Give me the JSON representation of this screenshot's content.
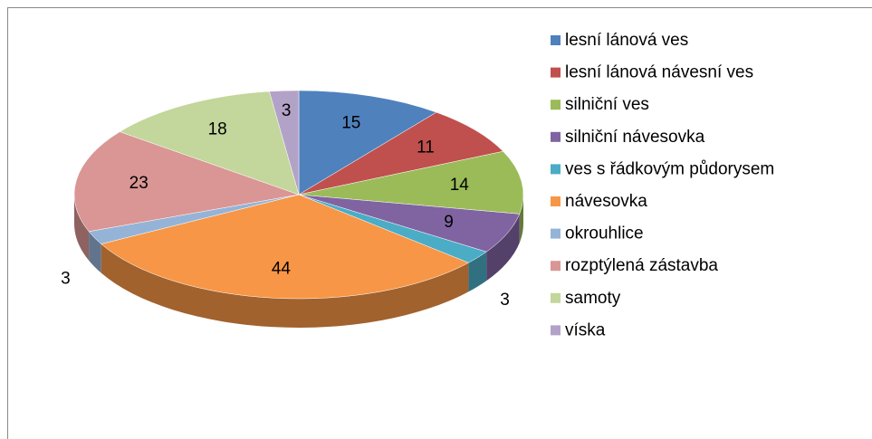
{
  "chart_data": {
    "type": "pie3d",
    "categories": [
      "lesní lánová ves",
      "lesní lánová návesní ves",
      "silniční ves",
      "silniční návesovka",
      "ves s řádkovým půdorysem",
      "návesovka",
      "okrouhlice",
      "rozptýlená zástavba",
      "samoty",
      "víska"
    ],
    "values": [
      15,
      11,
      14,
      9,
      3,
      44,
      3,
      23,
      18,
      3
    ],
    "colors": [
      "#4f81bd",
      "#c0504d",
      "#9bbb59",
      "#8064a2",
      "#4bacc6",
      "#f79646",
      "#95b3d7",
      "#d99694",
      "#c3d69b",
      "#b3a2c7"
    ],
    "legend": "right"
  }
}
